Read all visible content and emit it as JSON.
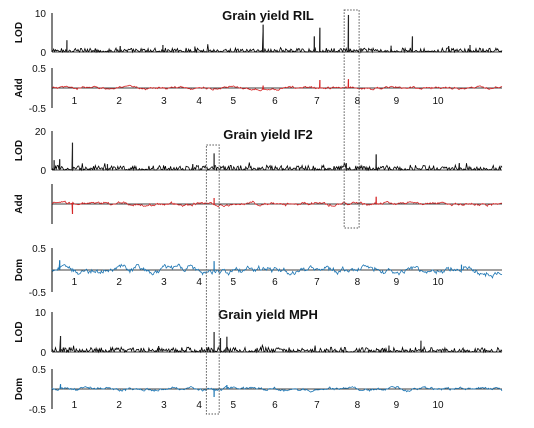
{
  "chart_data": [
    {
      "type": "line",
      "id": "p1",
      "title": "Grain yield RIL",
      "ylabel": "LOD",
      "ylim": [
        0,
        10
      ],
      "yticks": [
        "10",
        "0"
      ],
      "color": "#000000",
      "baseline": 0,
      "noise": 0.35,
      "peaks": [
        {
          "x": 0.35,
          "v": 3.0
        },
        {
          "x": 4.95,
          "v": 7.0
        },
        {
          "x": 6.15,
          "v": 4.0
        },
        {
          "x": 6.28,
          "v": 6.2
        },
        {
          "x": 6.95,
          "v": 9.5
        },
        {
          "x": 8.45,
          "v": 4.0
        },
        {
          "x": 1.6,
          "v": 1.5
        },
        {
          "x": 2.6,
          "v": 1.8
        },
        {
          "x": 3.35,
          "v": 1.4
        },
        {
          "x": 7.95,
          "v": 1.6
        },
        {
          "x": 9.3,
          "v": 1.5
        },
        {
          "x": 9.8,
          "v": 1.8
        }
      ]
    },
    {
      "type": "line",
      "id": "p2",
      "title": "",
      "ylabel": "Add",
      "ylim": [
        -0.5,
        0.5
      ],
      "yticks": [
        "0.5",
        "-0.5"
      ],
      "color": "#d62728",
      "baseline": 0,
      "noise": 0.04,
      "peaks": [
        {
          "x": 6.28,
          "v": 0.2
        },
        {
          "x": 6.95,
          "v": 0.22
        },
        {
          "x": 4.95,
          "v": 0.06
        }
      ]
    },
    {
      "type": "line",
      "id": "p3",
      "title": "Grain yield IF2",
      "ylabel": "LOD",
      "ylim": [
        0,
        20
      ],
      "yticks": [
        "20",
        "0"
      ],
      "color": "#000000",
      "baseline": 0,
      "noise": 0.8,
      "peaks": [
        {
          "x": 0.05,
          "v": 5.0
        },
        {
          "x": 0.18,
          "v": 5.5
        },
        {
          "x": 0.48,
          "v": 14.0
        },
        {
          "x": 1.3,
          "v": 3.0
        },
        {
          "x": 3.8,
          "v": 8.5
        },
        {
          "x": 3.3,
          "v": 3.0
        },
        {
          "x": 7.6,
          "v": 8.0
        },
        {
          "x": 9.55,
          "v": 3.5
        },
        {
          "x": 6.9,
          "v": 3.5
        }
      ]
    },
    {
      "type": "line",
      "id": "p4",
      "title": "",
      "ylabel": "Add",
      "ylim": [
        -0.5,
        0.5
      ],
      "yticks": [],
      "color": "#d62728",
      "baseline": 0,
      "noise": 0.05,
      "peaks": [
        {
          "x": 3.8,
          "v": 0.15
        },
        {
          "x": 7.6,
          "v": 0.18
        },
        {
          "x": 0.48,
          "v": -0.25
        }
      ]
    },
    {
      "type": "line",
      "id": "p5",
      "title": "",
      "ylabel": "Dom",
      "ylim": [
        -0.5,
        0.5
      ],
      "yticks": [
        "0.5",
        "-0.5"
      ],
      "color": "#1f77b4",
      "baseline": 0,
      "noise": 0.09,
      "peaks": [
        {
          "x": 0.18,
          "v": 0.22
        },
        {
          "x": 3.8,
          "v": 0.2
        },
        {
          "x": 9.6,
          "v": 0.12
        }
      ]
    },
    {
      "type": "line",
      "id": "p6",
      "title": "Grain yield MPH",
      "ylabel": "LOD",
      "ylim": [
        0,
        10
      ],
      "yticks": [
        "10",
        "0"
      ],
      "color": "#000000",
      "baseline": 0,
      "noise": 0.4,
      "peaks": [
        {
          "x": 0.2,
          "v": 4.0
        },
        {
          "x": 3.8,
          "v": 5.0
        },
        {
          "x": 3.95,
          "v": 3.5
        },
        {
          "x": 4.1,
          "v": 3.8
        },
        {
          "x": 8.65,
          "v": 2.8
        },
        {
          "x": 2.5,
          "v": 1.5
        },
        {
          "x": 7.9,
          "v": 1.6
        }
      ]
    },
    {
      "type": "line",
      "id": "p7",
      "title": "",
      "ylabel": "Dom",
      "ylim": [
        -0.5,
        0.5
      ],
      "yticks": [
        "0.5",
        "-0.5"
      ],
      "color": "#1f77b4",
      "baseline": 0,
      "noise": 0.05,
      "peaks": [
        {
          "x": 0.2,
          "v": 0.12
        },
        {
          "x": 3.8,
          "v": -0.2
        },
        {
          "x": 4.1,
          "v": 0.1
        }
      ]
    }
  ],
  "chromosome_labels": [
    "1",
    "2",
    "3",
    "4",
    "5",
    "6",
    "7",
    "8",
    "9",
    "10"
  ],
  "chromosome_bounds": [
    0,
    1.05,
    2.1,
    3.15,
    3.75,
    4.75,
    5.7,
    6.72,
    7.6,
    8.55,
    9.55
  ],
  "highlight_boxes": [
    {
      "id": "box-chr7",
      "x_from": 6.85,
      "x_to": 7.2
    },
    {
      "id": "box-chr4",
      "x_from": 3.62,
      "x_to": 3.92
    }
  ]
}
